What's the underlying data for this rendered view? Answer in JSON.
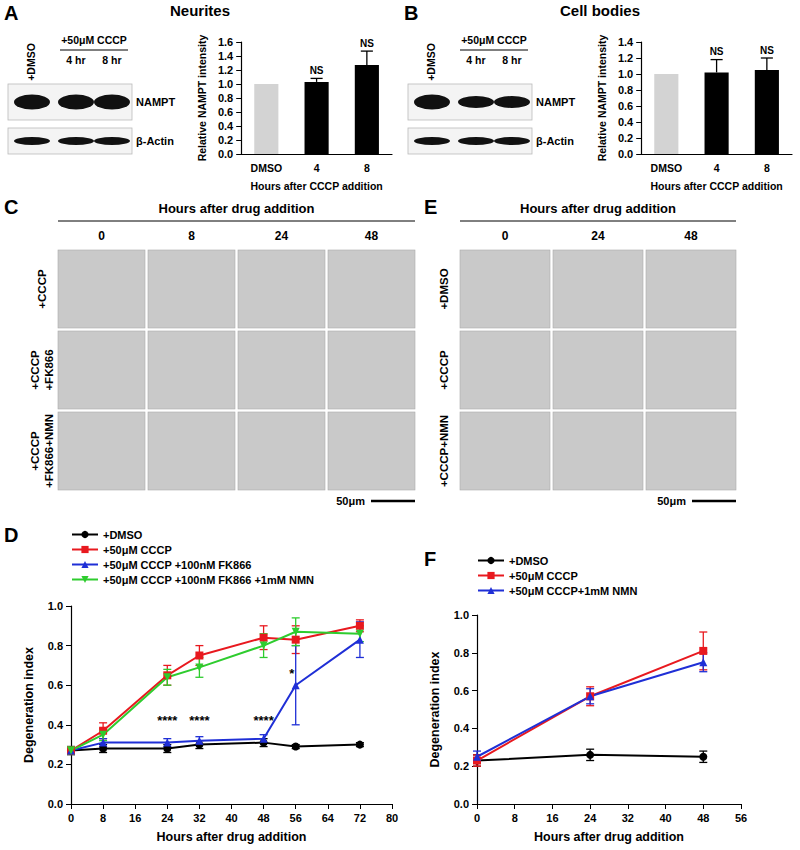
{
  "figure": {
    "A": {
      "letter": "A",
      "title": "Neurites",
      "blot": {
        "control_lane": "+DMSO",
        "treatment": "+50μM CCCP",
        "lanes": [
          "4 hr",
          "8 hr"
        ],
        "bands": [
          "NAMPT",
          "β-Actin"
        ]
      }
    },
    "B": {
      "letter": "B",
      "title": "Cell bodies",
      "blot": {
        "control_lane": "+DMSO",
        "treatment": "+50μM CCCP",
        "lanes": [
          "4 hr",
          "8 hr"
        ],
        "bands": [
          "NAMPT",
          "β-Actin"
        ]
      }
    },
    "C": {
      "letter": "C",
      "heading": "Hours after drug addition",
      "columns": [
        "0",
        "8",
        "24",
        "48"
      ],
      "rows": [
        [
          "+CCCP"
        ],
        [
          "+CCCP",
          "+FK866"
        ],
        [
          "+CCCP",
          "+FK866+NMN"
        ]
      ],
      "scale_bar": "50μm"
    },
    "D": {
      "letter": "D"
    },
    "E": {
      "letter": "E",
      "heading": "Hours after drug  addition",
      "columns": [
        "0",
        "24",
        "48"
      ],
      "rows": [
        [
          "+DMSO"
        ],
        [
          "+CCCP"
        ],
        [
          "+CCCP+NMN"
        ]
      ],
      "scale_bar": "50μm"
    },
    "F": {
      "letter": "F"
    }
  },
  "chart_data": [
    {
      "type": "bar",
      "y_label": "Relative NAMPT intensity",
      "x_label": "Hours after CCCP addition",
      "categories": [
        "DMSO",
        "4",
        "8"
      ],
      "values": [
        1.0,
        1.03,
        1.27
      ],
      "errors": [
        null,
        0.05,
        0.2
      ],
      "colors": [
        "#d3d3d3",
        "#000000",
        "#000000"
      ],
      "annotations": [
        {
          "category": "4",
          "text": "NS"
        },
        {
          "category": "8",
          "text": "NS"
        }
      ],
      "ylim": [
        0,
        1.6
      ],
      "yticks": [
        {
          "value": 0,
          "label": "0.0"
        },
        0.2,
        0.4,
        0.6,
        0.8,
        {
          "value": 1,
          "label": "1.0"
        },
        1.2,
        1.4,
        1.6
      ],
      "grid": false
    },
    {
      "type": "bar",
      "y_label": "Relative NAMPT intensity",
      "x_label": "Hours after CCCP addition",
      "categories": [
        "DMSO",
        "4",
        "8"
      ],
      "values": [
        1.0,
        1.02,
        1.05
      ],
      "errors": [
        null,
        0.16,
        0.15
      ],
      "colors": [
        "#d3d3d3",
        "#000000",
        "#000000"
      ],
      "annotations": [
        {
          "category": "4",
          "text": "NS"
        },
        {
          "category": "8",
          "text": "NS"
        }
      ],
      "ylim": [
        0,
        1.4
      ],
      "yticks": [
        {
          "value": 0,
          "label": "0.0"
        },
        0.2,
        0.4,
        0.6,
        0.8,
        {
          "value": 1,
          "label": "1.0"
        },
        1.2,
        1.4
      ],
      "grid": false
    },
    {
      "type": "line",
      "x_label": "Hours after drug addition",
      "y_label": "Degeneration index",
      "x": [
        0,
        8,
        24,
        32,
        48,
        56,
        72
      ],
      "series": [
        {
          "name": "+DMSO",
          "color": "#000000",
          "marker": "circle",
          "values": [
            0.27,
            0.28,
            0.28,
            0.3,
            0.31,
            0.29,
            0.3
          ],
          "errors": [
            0.02,
            0.02,
            0.02,
            0.02,
            0.02,
            0.01,
            0.01
          ]
        },
        {
          "name": "+50μM CCCP",
          "color": "#e8191f",
          "marker": "square",
          "values": [
            0.27,
            0.37,
            0.65,
            0.75,
            0.84,
            0.83,
            0.9
          ],
          "errors": [
            0.02,
            0.04,
            0.05,
            0.05,
            0.06,
            0.07,
            0.03
          ]
        },
        {
          "name": "+50μM CCCP +100nM FK866",
          "color": "#1f2fd6",
          "marker": "triangle",
          "values": [
            0.27,
            0.31,
            0.31,
            0.32,
            0.33,
            0.6,
            0.83
          ],
          "errors": [
            0.02,
            0.02,
            0.02,
            0.02,
            0.02,
            0.2,
            0.09
          ]
        },
        {
          "name": "+50μM CCCP +100nM FK866 +1mM NMN",
          "color": "#2ecc2e",
          "marker": "triangle_down",
          "values": [
            0.27,
            0.35,
            0.64,
            0.69,
            0.8,
            0.87,
            0.86
          ],
          "errors": [
            0.02,
            0.03,
            0.04,
            0.05,
            0.06,
            0.07,
            0.04
          ]
        }
      ],
      "annotations": [
        {
          "text": "****",
          "x": 24,
          "y": 0.42
        },
        {
          "text": "****",
          "x": 32,
          "y": 0.42
        },
        {
          "text": "****",
          "x": 48,
          "y": 0.42
        },
        {
          "text": "*",
          "x": 55,
          "y": 0.66
        }
      ],
      "xlim": [
        0,
        80
      ],
      "xticks": [
        0,
        8,
        16,
        24,
        32,
        40,
        48,
        56,
        64,
        72,
        80
      ],
      "ylim": [
        0,
        1.0
      ],
      "yticks": [
        {
          "value": 0,
          "label": "0.0"
        },
        0.2,
        0.4,
        0.6,
        0.8,
        {
          "value": 1,
          "label": "1.0"
        }
      ],
      "legend": "top-left",
      "grid": false
    },
    {
      "type": "line",
      "x_label": "Hours after drug addition",
      "y_label": "Degeneration index",
      "x": [
        0,
        24,
        48
      ],
      "series": [
        {
          "name": "+DMSO",
          "color": "#000000",
          "marker": "circle",
          "values": [
            0.23,
            0.26,
            0.25
          ],
          "errors": [
            0.03,
            0.03,
            0.03
          ]
        },
        {
          "name": "+50μM CCCP",
          "color": "#e8191f",
          "marker": "square",
          "values": [
            0.23,
            0.57,
            0.81
          ],
          "errors": [
            0.03,
            0.05,
            0.1
          ]
        },
        {
          "name": "+50μM CCCP+1mM NMN",
          "color": "#1f2fd6",
          "marker": "triangle",
          "values": [
            0.25,
            0.57,
            0.75
          ],
          "errors": [
            0.03,
            0.04,
            0.05
          ]
        }
      ],
      "xlim": [
        0,
        56
      ],
      "xticks": [
        0,
        8,
        16,
        24,
        32,
        40,
        48,
        56
      ],
      "ylim": [
        0,
        1.0
      ],
      "yticks": [
        {
          "value": 0,
          "label": "0.0"
        },
        0.2,
        0.4,
        0.6,
        0.8,
        {
          "value": 1,
          "label": "1.0"
        }
      ],
      "legend": "top-left",
      "grid": false
    }
  ]
}
